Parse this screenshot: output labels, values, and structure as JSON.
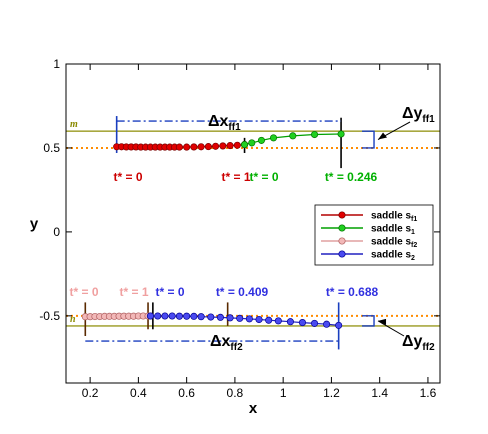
{
  "chart_data": {
    "type": "line",
    "title": "",
    "xlabel": "x",
    "ylabel": "y",
    "xlim": [
      0.1,
      1.65
    ],
    "ylim": [
      -0.9,
      1.0
    ],
    "x_ticks": [
      0.2,
      0.4,
      0.6,
      0.8,
      1,
      1.2,
      1.4,
      1.6
    ],
    "x_tick_labels": [
      "0.2",
      "0.4",
      "0.6",
      "0.8",
      "1",
      "1.2",
      "1.4",
      "1.6"
    ],
    "y_ticks": [
      -0.5,
      0,
      0.5,
      1
    ],
    "y_tick_labels": [
      "-0.5",
      "0",
      "0.5",
      "1"
    ],
    "grid": false,
    "legend_position": "right",
    "series": [
      {
        "name": "saddle s",
        "name_sub": "f1",
        "line_color": "#b40000",
        "marker_fill": "#e00000",
        "marker_edge": "#7a0000",
        "x": [
          0.31,
          0.33,
          0.35,
          0.37,
          0.39,
          0.41,
          0.43,
          0.45,
          0.47,
          0.49,
          0.51,
          0.53,
          0.55,
          0.57,
          0.6,
          0.63,
          0.66,
          0.69,
          0.72,
          0.75,
          0.78,
          0.81,
          0.84
        ],
        "y": [
          0.507,
          0.507,
          0.506,
          0.506,
          0.506,
          0.505,
          0.505,
          0.505,
          0.505,
          0.505,
          0.505,
          0.505,
          0.505,
          0.505,
          0.505,
          0.506,
          0.507,
          0.508,
          0.51,
          0.512,
          0.514,
          0.516,
          0.52
        ]
      },
      {
        "name": "saddle s",
        "name_sub": "1",
        "line_color": "#00a000",
        "marker_fill": "#20d020",
        "marker_edge": "#007000",
        "x": [
          0.84,
          0.87,
          0.91,
          0.96,
          1.04,
          1.13,
          1.24
        ],
        "y": [
          0.52,
          0.53,
          0.545,
          0.56,
          0.572,
          0.58,
          0.583
        ]
      },
      {
        "name": "saddle s",
        "name_sub": "f2",
        "line_color": "#e0a0a0",
        "marker_fill": "#f2b8b8",
        "marker_edge": "#b06060",
        "x": [
          0.18,
          0.2,
          0.22,
          0.24,
          0.26,
          0.28,
          0.3,
          0.32,
          0.34,
          0.36,
          0.38,
          0.4,
          0.42,
          0.44,
          0.45
        ],
        "y": [
          -0.505,
          -0.505,
          -0.504,
          -0.504,
          -0.503,
          -0.503,
          -0.503,
          -0.502,
          -0.502,
          -0.502,
          -0.502,
          -0.501,
          -0.501,
          -0.501,
          -0.501
        ]
      },
      {
        "name": "saddle s",
        "name_sub": "2",
        "line_color": "#2020c0",
        "marker_fill": "#4a4af0",
        "marker_edge": "#000090",
        "x": [
          0.45,
          0.48,
          0.51,
          0.54,
          0.57,
          0.6,
          0.63,
          0.66,
          0.7,
          0.74,
          0.78,
          0.82,
          0.86,
          0.9,
          0.94,
          0.98,
          1.03,
          1.08,
          1.13,
          1.18,
          1.23
        ],
        "y": [
          -0.501,
          -0.501,
          -0.501,
          -0.501,
          -0.502,
          -0.502,
          -0.503,
          -0.505,
          -0.507,
          -0.509,
          -0.512,
          -0.515,
          -0.518,
          -0.522,
          -0.526,
          -0.53,
          -0.535,
          -0.54,
          -0.545,
          -0.55,
          -0.557
        ]
      }
    ],
    "reference_lines": [
      {
        "label": "m",
        "y": 0.6,
        "color": "#a8a840",
        "style": "solid"
      },
      {
        "label": "",
        "y": 0.5,
        "color": "#ff8c00",
        "style": "dotted"
      },
      {
        "label": "",
        "y": -0.5,
        "color": "#ff8c00",
        "style": "dotted"
      },
      {
        "label": "n",
        "y": -0.56,
        "color": "#a8a840",
        "style": "solid"
      }
    ],
    "annotations": {
      "top": [
        {
          "text": "t* = 0",
          "x": 0.31,
          "color": "#cc0000"
        },
        {
          "text": "t* = 1",
          "x": 0.84,
          "color": "#cc0000"
        },
        {
          "text": "t* = 0",
          "x": 0.84,
          "color": "#00b000"
        },
        {
          "text": "t* = 0.246",
          "x": 1.24,
          "color": "#00b000"
        }
      ],
      "bottom": [
        {
          "text": "t* = 0",
          "x": 0.18,
          "color": "#f0a0a0"
        },
        {
          "text": "t* = 1",
          "x": 0.45,
          "color": "#f0a0a0"
        },
        {
          "text": "t* = 0",
          "x": 0.45,
          "color": "#3030e0"
        },
        {
          "text": "t* = 0.409",
          "x": 0.77,
          "color": "#3030e0"
        },
        {
          "text": "t* = 0.688",
          "x": 1.23,
          "color": "#3030e0"
        }
      ]
    },
    "dimensions": {
      "dx_ff1": {
        "label": "Δx",
        "sub": "ff1",
        "x_start": 0.31,
        "x_end": 1.24,
        "y": 0.66
      },
      "dy_ff1": {
        "label": "Δy",
        "sub": "ff1",
        "x": 1.36,
        "y_start": 0.5,
        "y_end": 0.6
      },
      "dx_ff2": {
        "label": "Δx",
        "sub": "ff2",
        "x_start": 0.18,
        "x_end": 1.23,
        "y": -0.65
      },
      "dy_ff2": {
        "label": "Δy",
        "sub": "ff2",
        "x": 1.36,
        "y_start": -0.5,
        "y_end": -0.56
      }
    }
  }
}
